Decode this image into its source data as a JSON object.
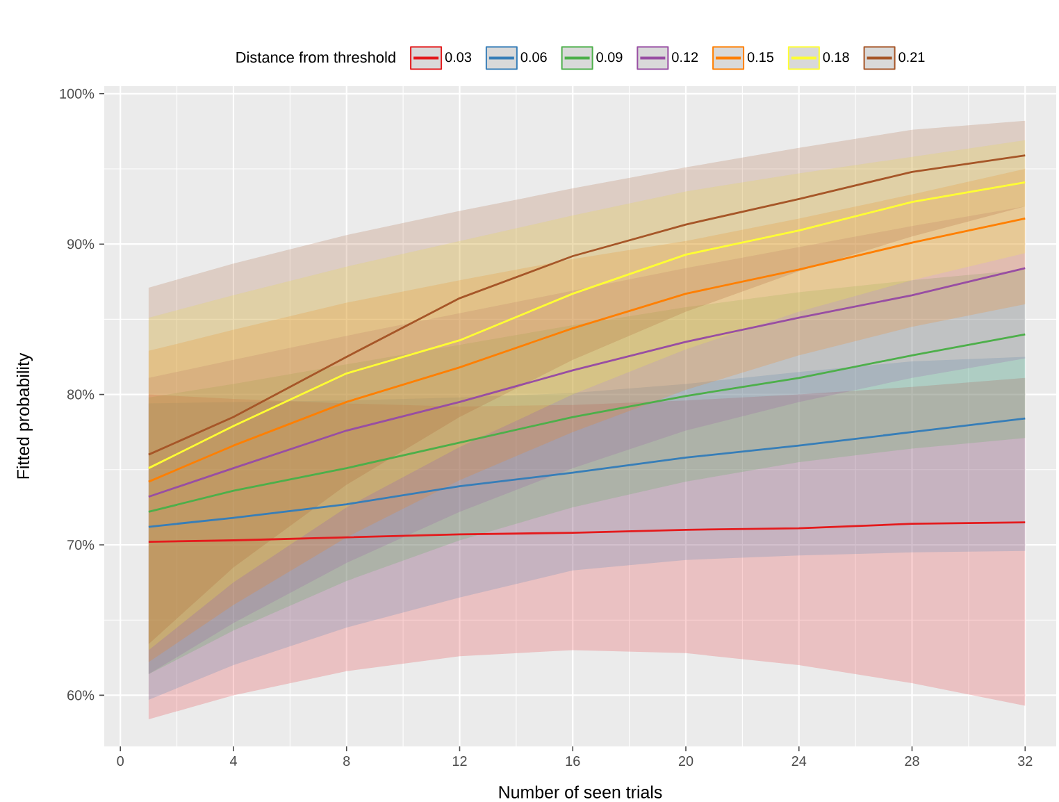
{
  "chart_data": {
    "type": "line",
    "xlabel": "Number of seen trials",
    "ylabel": "Fitted probability",
    "legend_title": "Distance from threshold",
    "legend": "top",
    "grid": true,
    "x": [
      1,
      4,
      8,
      12,
      16,
      20,
      24,
      28,
      32
    ],
    "xlim": [
      -0.57,
      33.1
    ],
    "xticks": [
      0,
      4,
      8,
      12,
      16,
      20,
      24,
      28,
      32
    ],
    "ylim": [
      56.6,
      100.5
    ],
    "yticks": [
      {
        "value": 60,
        "label": "60%"
      },
      {
        "value": 70,
        "label": "70%"
      },
      {
        "value": 80,
        "label": "80%"
      },
      {
        "value": 90,
        "label": "90%"
      },
      {
        "value": 100,
        "label": "100%"
      }
    ],
    "series": [
      {
        "name": "0.03",
        "color": "#e41a1c",
        "values": [
          70.2,
          70.3,
          70.5,
          70.7,
          70.8,
          71.0,
          71.1,
          71.4,
          71.5
        ],
        "lower": [
          58.4,
          60.0,
          61.6,
          62.6,
          63.0,
          62.8,
          62.0,
          60.8,
          59.3
        ],
        "upper": [
          80.0,
          79.7,
          79.4,
          79.2,
          79.3,
          79.6,
          80.0,
          80.5,
          81.1
        ]
      },
      {
        "name": "0.06",
        "color": "#377eb8",
        "values": [
          71.2,
          71.8,
          72.7,
          73.9,
          74.8,
          75.8,
          76.6,
          77.5,
          78.4
        ],
        "lower": [
          59.7,
          62.0,
          64.5,
          66.5,
          68.3,
          69.0,
          69.3,
          69.5,
          69.6
        ],
        "upper": [
          79.4,
          79.5,
          79.6,
          79.8,
          80.1,
          80.7,
          81.5,
          82.2,
          82.5
        ]
      },
      {
        "name": "0.09",
        "color": "#4daf4a",
        "values": [
          72.2,
          73.6,
          75.1,
          76.8,
          78.5,
          79.9,
          81.1,
          82.6,
          84.0
        ],
        "lower": [
          61.4,
          64.3,
          67.6,
          70.3,
          72.5,
          74.2,
          75.5,
          76.4,
          77.1
        ],
        "upper": [
          79.8,
          80.7,
          82.0,
          83.3,
          84.6,
          85.8,
          86.8,
          87.6,
          88.3
        ]
      },
      {
        "name": "0.12",
        "color": "#984ea3",
        "values": [
          73.2,
          75.1,
          77.6,
          79.5,
          81.6,
          83.5,
          85.1,
          86.6,
          88.4
        ],
        "lower": [
          61.4,
          64.8,
          68.8,
          72.2,
          75.1,
          77.6,
          79.5,
          81.1,
          82.4
        ],
        "upper": [
          81.1,
          82.3,
          83.9,
          85.4,
          86.9,
          88.4,
          89.8,
          91.2,
          92.5
        ]
      },
      {
        "name": "0.15",
        "color": "#ff7f00",
        "values": [
          74.2,
          76.6,
          79.5,
          81.8,
          84.4,
          86.7,
          88.3,
          90.1,
          91.7
        ],
        "lower": [
          62.2,
          66.0,
          70.5,
          74.3,
          77.5,
          80.3,
          82.6,
          84.5,
          86.0
        ],
        "upper": [
          82.9,
          84.3,
          86.1,
          87.6,
          89.0,
          90.2,
          91.7,
          93.3,
          95.0
        ]
      },
      {
        "name": "0.18",
        "color": "#ffff33",
        "values": [
          75.1,
          77.9,
          81.4,
          83.6,
          86.7,
          89.3,
          90.9,
          92.8,
          94.1
        ],
        "lower": [
          63.0,
          67.5,
          72.5,
          76.5,
          80.0,
          83.0,
          85.5,
          87.6,
          89.4
        ],
        "upper": [
          85.1,
          86.6,
          88.5,
          90.2,
          91.9,
          93.5,
          94.7,
          95.8,
          96.9
        ]
      },
      {
        "name": "0.21",
        "color": "#a65628",
        "values": [
          76.0,
          78.5,
          82.5,
          86.4,
          89.2,
          91.3,
          93.0,
          94.8,
          95.9
        ],
        "lower": [
          63.4,
          68.5,
          74.0,
          78.5,
          82.3,
          85.5,
          88.2,
          90.5,
          92.5
        ],
        "upper": [
          87.1,
          88.7,
          90.6,
          92.2,
          93.7,
          95.1,
          96.4,
          97.6,
          98.2
        ]
      }
    ]
  }
}
